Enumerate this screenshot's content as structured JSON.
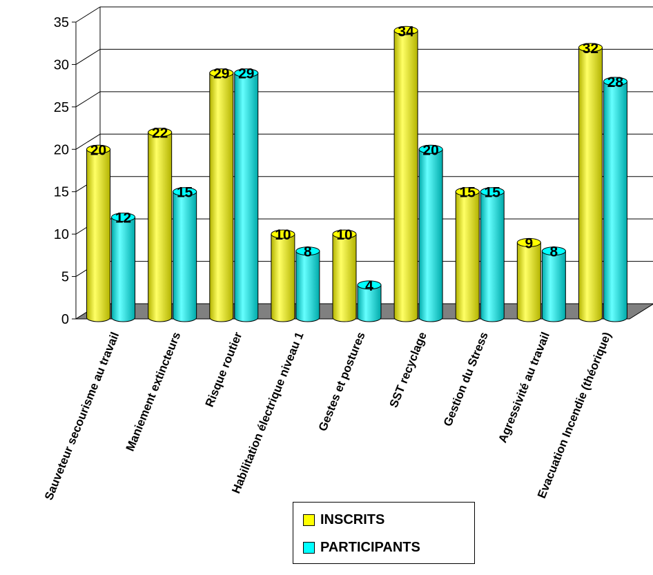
{
  "chart_data": {
    "type": "bar",
    "categories": [
      "Sauveteur secourisme au travail",
      "Maniement extincteurs",
      "Risque routier",
      "Habilitation électrique niveau 1",
      "Gestes et postures",
      "SST recyclage",
      "Gestion du Stress",
      "Agressivité au travail",
      "Evacuation Incendie (théorique)"
    ],
    "series": [
      {
        "name": "INSCRITS",
        "color": "#ffff00",
        "values": [
          20,
          22,
          29,
          10,
          10,
          34,
          15,
          9,
          32
        ]
      },
      {
        "name": "PARTICIPANTS",
        "color": "#00ffff",
        "values": [
          12,
          15,
          29,
          8,
          4,
          20,
          15,
          8,
          28
        ]
      }
    ],
    "ylim": [
      0,
      35
    ],
    "yticks": [
      0,
      5,
      10,
      15,
      20,
      25,
      30,
      35
    ],
    "grid": true,
    "legend_position": "bottom",
    "floor_color": "#808080"
  }
}
